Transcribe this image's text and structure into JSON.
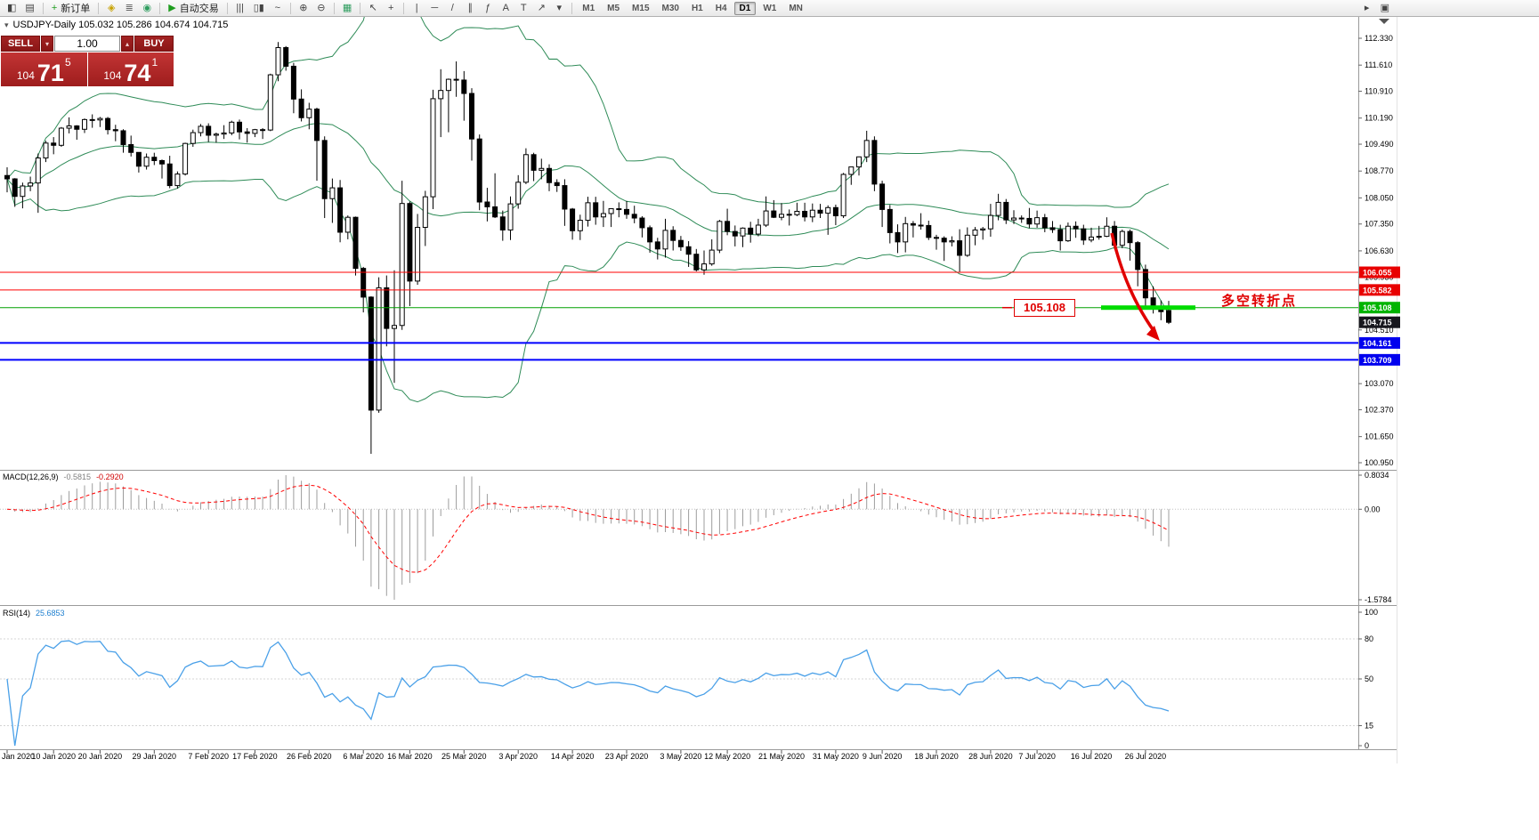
{
  "toolbar": {
    "groups": [
      {
        "items": [
          {
            "name": "terminal-icon",
            "glyph": "◧"
          },
          {
            "name": "chart-list-icon",
            "glyph": "▤"
          }
        ]
      },
      {
        "items": [
          {
            "name": "new-order-button",
            "glyph": "+",
            "glyph_color": "#1f9d1f",
            "label": "新订单"
          }
        ]
      },
      {
        "items": [
          {
            "name": "metaeditor-icon",
            "glyph": "◈",
            "glyph_color": "#c8a200"
          },
          {
            "name": "market-depth-icon",
            "glyph": "≣",
            "glyph_color": "#555555"
          },
          {
            "name": "alerts-icon",
            "glyph": "◉",
            "glyph_color": "#2f9d5f"
          }
        ]
      },
      {
        "items": [
          {
            "name": "autotrading-button",
            "glyph": "▶",
            "glyph_color": "#1f9d1f",
            "label": "自动交易"
          }
        ]
      },
      {
        "items": [
          {
            "name": "bar-chart-mode-icon",
            "glyph": "|||"
          },
          {
            "name": "candlestick-mode-icon",
            "glyph": "▯▮"
          },
          {
            "name": "line-chart-mode-icon",
            "glyph": "~"
          }
        ]
      },
      {
        "items": [
          {
            "name": "zoom-in-icon",
            "glyph": "⊕"
          },
          {
            "name": "zoom-out-icon",
            "glyph": "⊖"
          }
        ]
      },
      {
        "items": [
          {
            "name": "tile-windows-icon",
            "glyph": "▦",
            "glyph_color": "#2f9d5f"
          }
        ]
      },
      {
        "items": [
          {
            "name": "cursor-icon",
            "glyph": "↖"
          },
          {
            "name": "crosshair-icon",
            "glyph": "+"
          }
        ]
      },
      {
        "items": [
          {
            "name": "vertical-line-icon",
            "glyph": "|"
          },
          {
            "name": "horizontal-line-icon",
            "glyph": "─"
          },
          {
            "name": "trendline-icon",
            "glyph": "/"
          },
          {
            "name": "channel-icon",
            "glyph": "∥"
          },
          {
            "name": "fibonacci-icon",
            "glyph": "ƒ"
          },
          {
            "name": "text-icon",
            "glyph": "A"
          },
          {
            "name": "label-icon",
            "glyph": "T"
          },
          {
            "name": "arrows-tool-icon",
            "glyph": "↗"
          },
          {
            "name": "arrows-dropdown-icon",
            "glyph": "▾"
          }
        ]
      }
    ],
    "timeframes": [
      "M1",
      "M5",
      "M15",
      "M30",
      "H1",
      "H4",
      "D1",
      "W1",
      "MN"
    ],
    "active_timeframe": "D1",
    "right_items": [
      {
        "name": "chart-scroll-icon",
        "glyph": "▸"
      },
      {
        "name": "chart-expand-icon",
        "glyph": "▣"
      }
    ]
  },
  "chart": {
    "collapse_arrow": "▾",
    "symbol_info": "USDJPY-Daily  105.032 105.286 104.674 104.715",
    "trade_panel": {
      "sell_label": "SELL",
      "buy_label": "BUY",
      "volume": "1.00",
      "spin_down": "▾",
      "spin_up": "▴",
      "bid": {
        "prefix": "104",
        "big": "71",
        "sup": "5"
      },
      "ask": {
        "prefix": "104",
        "big": "74",
        "sup": "1"
      }
    },
    "levels": [
      {
        "price": 106.055,
        "color": "#FF0000",
        "width": 1,
        "label": "106.055",
        "label_bg": "#E80000"
      },
      {
        "price": 105.582,
        "color": "#FF0000",
        "width": 1,
        "label": "105.582",
        "label_bg": "#E80000"
      },
      {
        "price": 105.108,
        "color": "#00A000",
        "width": 1,
        "label": "105.108",
        "label_bg": "#00B400"
      },
      {
        "price": 104.161,
        "color": "#0000FF",
        "width": 2,
        "label": "104.161",
        "label_bg": "#0000EE"
      },
      {
        "price": 103.709,
        "color": "#0000FF",
        "width": 2,
        "label": "103.709",
        "label_bg": "#0000EE"
      }
    ],
    "current_price": {
      "price": 104.715,
      "label": "104.715",
      "label_bg": "#17171d"
    },
    "price_axis_ticks": [
      "112.330",
      "111.610",
      "110.910",
      "110.190",
      "109.490",
      "108.770",
      "108.050",
      "107.350",
      "106.630",
      "105.930",
      "104.510",
      "103.070",
      "102.370",
      "101.650",
      "100.950"
    ],
    "annotations": {
      "price_box": "105.108",
      "cn_note": "多空转折点",
      "highlight_price": 105.108,
      "highlight_color": "#00DC00",
      "arrow_color": "#E00000"
    }
  },
  "indicators": {
    "macd": {
      "name": "MACD(12,26,9)",
      "main_value": "-0.5815",
      "signal_value": "-0.2920",
      "scale": [
        "0.8034",
        "0.00",
        "-1.5784"
      ]
    },
    "rsi": {
      "name": "RSI(14)",
      "value": "25.6853",
      "scale": [
        "100",
        "80",
        "50",
        "15",
        "0"
      ],
      "levels": [
        80,
        50,
        15
      ]
    }
  },
  "chart_data": {
    "type": "candlestick",
    "symbol": "USDJPY",
    "timeframe": "Daily",
    "price_range_top": 112.33,
    "price_range_bottom": 100.95,
    "overlays": [
      {
        "type": "bollinger_bands",
        "period": 20,
        "deviation": 2,
        "color": "#2E8B57"
      }
    ],
    "sub_charts": [
      {
        "type": "macd",
        "params": [
          12,
          26,
          9
        ],
        "scale_max": 0.8034,
        "scale_min": -1.5784
      },
      {
        "type": "rsi",
        "period": 14,
        "scale_max": 100,
        "scale_min": 0
      }
    ],
    "ohlc_format": [
      "open",
      "high",
      "low",
      "close"
    ],
    "ohlc": [
      [
        108.65,
        108.87,
        108.2,
        108.56
      ],
      [
        108.56,
        108.58,
        107.81,
        108.09
      ],
      [
        108.09,
        108.46,
        107.77,
        108.37
      ],
      [
        108.37,
        108.62,
        108.23,
        108.45
      ],
      [
        108.45,
        109.24,
        107.65,
        109.12
      ],
      [
        109.12,
        109.58,
        109.01,
        109.52
      ],
      [
        109.52,
        109.68,
        109.22,
        109.46
      ],
      [
        109.46,
        109.95,
        109.42,
        109.92
      ],
      [
        109.92,
        110.21,
        109.78,
        109.98
      ],
      [
        109.98,
        110.0,
        109.61,
        109.89
      ],
      [
        109.89,
        110.18,
        109.79,
        110.15
      ],
      [
        110.15,
        110.29,
        109.93,
        110.14
      ],
      [
        110.14,
        110.22,
        109.95,
        110.18
      ],
      [
        110.18,
        110.22,
        109.75,
        109.88
      ],
      [
        109.88,
        110.01,
        109.57,
        109.85
      ],
      [
        109.85,
        109.89,
        109.26,
        109.48
      ],
      [
        109.48,
        109.72,
        109.16,
        109.27
      ],
      [
        109.27,
        109.27,
        108.73,
        108.9
      ],
      [
        108.9,
        109.24,
        108.81,
        109.14
      ],
      [
        109.14,
        109.26,
        108.93,
        109.05
      ],
      [
        109.05,
        109.08,
        108.57,
        108.96
      ],
      [
        108.96,
        109.18,
        108.31,
        108.38
      ],
      [
        108.38,
        108.76,
        108.3,
        108.69
      ],
      [
        108.69,
        109.53,
        108.65,
        109.51
      ],
      [
        109.51,
        109.88,
        109.42,
        109.8
      ],
      [
        109.8,
        110.03,
        109.7,
        109.97
      ],
      [
        109.97,
        110.05,
        109.55,
        109.73
      ],
      [
        109.73,
        109.8,
        109.53,
        109.76
      ],
      [
        109.76,
        110.0,
        109.63,
        109.79
      ],
      [
        109.79,
        110.12,
        109.73,
        110.08
      ],
      [
        110.08,
        110.15,
        109.62,
        109.82
      ],
      [
        109.82,
        109.92,
        109.53,
        109.78
      ],
      [
        109.78,
        109.9,
        109.68,
        109.88
      ],
      [
        109.88,
        109.92,
        109.63,
        109.87
      ],
      [
        109.87,
        111.38,
        109.84,
        111.35
      ],
      [
        111.35,
        112.23,
        111.18,
        112.08
      ],
      [
        112.08,
        112.12,
        111.46,
        111.58
      ],
      [
        111.58,
        111.67,
        110.32,
        110.7
      ],
      [
        110.7,
        110.96,
        110.1,
        110.2
      ],
      [
        110.2,
        110.6,
        109.89,
        110.43
      ],
      [
        110.43,
        110.47,
        108.51,
        109.59
      ],
      [
        109.59,
        109.7,
        107.51,
        108.03
      ],
      [
        108.03,
        108.57,
        107.38,
        108.32
      ],
      [
        108.32,
        108.53,
        106.86,
        107.13
      ],
      [
        107.13,
        107.58,
        106.94,
        107.53
      ],
      [
        107.53,
        107.55,
        105.97,
        106.16
      ],
      [
        106.16,
        106.2,
        104.98,
        105.39
      ],
      [
        105.39,
        105.41,
        101.19,
        102.36
      ],
      [
        102.36,
        105.92,
        102.29,
        105.64
      ],
      [
        105.64,
        105.97,
        104.07,
        104.55
      ],
      [
        104.55,
        106.11,
        103.09,
        104.63
      ],
      [
        104.63,
        108.51,
        104.51,
        107.9
      ],
      [
        107.9,
        107.95,
        105.15,
        105.82
      ],
      [
        105.82,
        107.62,
        105.72,
        107.26
      ],
      [
        107.26,
        108.24,
        106.76,
        108.08
      ],
      [
        108.08,
        110.95,
        107.75,
        110.71
      ],
      [
        110.71,
        111.5,
        109.68,
        110.93
      ],
      [
        110.93,
        111.25,
        109.81,
        111.23
      ],
      [
        111.23,
        111.71,
        110.76,
        111.21
      ],
      [
        111.21,
        111.45,
        110.12,
        110.85
      ],
      [
        110.85,
        110.99,
        109.05,
        109.63
      ],
      [
        109.63,
        109.75,
        107.72,
        107.94
      ],
      [
        107.94,
        108.32,
        107.42,
        107.81
      ],
      [
        107.81,
        108.71,
        107.51,
        107.54
      ],
      [
        107.54,
        107.71,
        106.9,
        107.19
      ],
      [
        107.19,
        108.09,
        106.92,
        107.89
      ],
      [
        107.89,
        108.66,
        107.76,
        108.47
      ],
      [
        108.47,
        109.38,
        108.42,
        109.21
      ],
      [
        109.21,
        109.26,
        108.5,
        108.79
      ],
      [
        108.79,
        109.1,
        108.55,
        108.84
      ],
      [
        108.84,
        108.95,
        108.23,
        108.46
      ],
      [
        108.46,
        108.55,
        108.21,
        108.38
      ],
      [
        108.38,
        108.55,
        107.3,
        107.75
      ],
      [
        107.75,
        107.78,
        106.93,
        107.17
      ],
      [
        107.17,
        107.6,
        106.92,
        107.45
      ],
      [
        107.45,
        108.08,
        107.28,
        107.92
      ],
      [
        107.92,
        108.08,
        107.33,
        107.54
      ],
      [
        107.54,
        107.97,
        107.27,
        107.63
      ],
      [
        107.63,
        107.77,
        107.27,
        107.76
      ],
      [
        107.76,
        107.93,
        107.53,
        107.74
      ],
      [
        107.74,
        107.97,
        107.49,
        107.61
      ],
      [
        107.61,
        107.84,
        107.37,
        107.51
      ],
      [
        107.51,
        107.56,
        106.99,
        107.25
      ],
      [
        107.25,
        107.31,
        106.58,
        106.87
      ],
      [
        106.87,
        106.98,
        106.4,
        106.68
      ],
      [
        106.68,
        107.49,
        106.45,
        107.18
      ],
      [
        107.18,
        107.29,
        106.64,
        106.91
      ],
      [
        106.91,
        107.03,
        106.63,
        106.74
      ],
      [
        106.74,
        106.89,
        106.2,
        106.54
      ],
      [
        106.54,
        106.68,
        106.08,
        106.12
      ],
      [
        106.12,
        106.64,
        105.99,
        106.28
      ],
      [
        106.28,
        106.94,
        106.23,
        106.65
      ],
      [
        106.65,
        107.46,
        106.57,
        107.42
      ],
      [
        107.42,
        107.76,
        107.05,
        107.15
      ],
      [
        107.15,
        107.31,
        106.75,
        107.03
      ],
      [
        107.03,
        107.26,
        106.73,
        107.24
      ],
      [
        107.24,
        107.41,
        106.85,
        107.08
      ],
      [
        107.08,
        107.49,
        107.02,
        107.32
      ],
      [
        107.32,
        108.09,
        107.27,
        107.7
      ],
      [
        107.7,
        107.99,
        107.51,
        107.53
      ],
      [
        107.53,
        107.91,
        107.45,
        107.61
      ],
      [
        107.61,
        107.74,
        107.31,
        107.6
      ],
      [
        107.6,
        107.92,
        107.56,
        107.69
      ],
      [
        107.69,
        107.92,
        107.42,
        107.54
      ],
      [
        107.54,
        107.9,
        107.4,
        107.72
      ],
      [
        107.72,
        107.89,
        107.51,
        107.64
      ],
      [
        107.64,
        107.85,
        107.06,
        107.79
      ],
      [
        107.79,
        107.87,
        107.32,
        107.57
      ],
      [
        107.57,
        108.72,
        107.51,
        108.68
      ],
      [
        108.68,
        108.88,
        108.4,
        108.88
      ],
      [
        108.88,
        109.16,
        108.65,
        109.15
      ],
      [
        109.15,
        109.85,
        109.01,
        109.59
      ],
      [
        109.59,
        109.7,
        108.23,
        108.42
      ],
      [
        108.42,
        108.51,
        107.27,
        107.74
      ],
      [
        107.74,
        107.86,
        106.83,
        107.12
      ],
      [
        107.12,
        107.34,
        106.57,
        106.87
      ],
      [
        106.87,
        107.54,
        106.59,
        107.36
      ],
      [
        107.36,
        107.43,
        106.99,
        107.32
      ],
      [
        107.32,
        107.64,
        107.2,
        107.31
      ],
      [
        107.31,
        107.44,
        106.92,
        106.99
      ],
      [
        106.99,
        107.06,
        106.66,
        106.97
      ],
      [
        106.97,
        107.02,
        106.36,
        106.87
      ],
      [
        106.87,
        107.02,
        106.75,
        106.9
      ],
      [
        106.9,
        107.21,
        106.07,
        106.51
      ],
      [
        106.51,
        107.26,
        106.47,
        107.05
      ],
      [
        107.05,
        107.27,
        106.78,
        107.19
      ],
      [
        107.19,
        107.27,
        106.93,
        107.22
      ],
      [
        107.22,
        107.89,
        107.01,
        107.58
      ],
      [
        107.58,
        108.16,
        107.45,
        107.93
      ],
      [
        107.93,
        108.02,
        107.35,
        107.46
      ],
      [
        107.46,
        107.72,
        107.35,
        107.51
      ],
      [
        107.51,
        107.58,
        107.38,
        107.5
      ],
      [
        107.5,
        107.78,
        107.24,
        107.35
      ],
      [
        107.35,
        107.71,
        107.25,
        107.52
      ],
      [
        107.52,
        107.62,
        107.13,
        107.25
      ],
      [
        107.25,
        107.43,
        107.11,
        107.2
      ],
      [
        107.2,
        107.33,
        106.64,
        106.9
      ],
      [
        106.9,
        107.39,
        106.87,
        107.29
      ],
      [
        107.29,
        107.42,
        106.98,
        107.22
      ],
      [
        107.22,
        107.33,
        106.79,
        106.92
      ],
      [
        106.92,
        107.25,
        106.86,
        107.0
      ],
      [
        107.0,
        107.3,
        106.93,
        107.02
      ],
      [
        107.02,
        107.53,
        107.0,
        107.29
      ],
      [
        107.29,
        107.43,
        106.67,
        106.78
      ],
      [
        106.78,
        107.2,
        106.7,
        107.15
      ],
      [
        107.15,
        107.2,
        106.37,
        106.85
      ],
      [
        106.85,
        106.89,
        105.68,
        106.13
      ],
      [
        106.13,
        106.26,
        105.12,
        105.37
      ],
      [
        105.37,
        105.68,
        104.95,
        105.11
      ],
      [
        105.11,
        105.3,
        104.77,
        105.0
      ],
      [
        105.03,
        105.29,
        104.67,
        104.715
      ]
    ],
    "date_labels": [
      [
        "Jan 2020",
        0
      ],
      [
        "10 Jan 2020",
        6
      ],
      [
        "20 Jan 2020",
        12
      ],
      [
        "29 Jan 2020",
        19
      ],
      [
        "7 Feb 2020",
        26
      ],
      [
        "17 Feb 2020",
        32
      ],
      [
        "26 Feb 2020",
        39
      ],
      [
        "6 Mar 2020",
        46
      ],
      [
        "16 Mar 2020",
        52
      ],
      [
        "25 Mar 2020",
        59
      ],
      [
        "3 Apr 2020",
        66
      ],
      [
        "14 Apr 2020",
        73
      ],
      [
        "23 Apr 2020",
        80
      ],
      [
        "3 May 2020",
        87
      ],
      [
        "12 May 2020",
        93
      ],
      [
        "21 May 2020",
        100
      ],
      [
        "31 May 2020",
        107
      ],
      [
        "9 Jun 2020",
        113
      ],
      [
        "18 Jun 2020",
        120
      ],
      [
        "28 Jun 2020",
        127
      ],
      [
        "7 Jul 2020",
        133
      ],
      [
        "16 Jul 2020",
        140
      ],
      [
        "26 Jul 2020",
        147
      ]
    ]
  }
}
